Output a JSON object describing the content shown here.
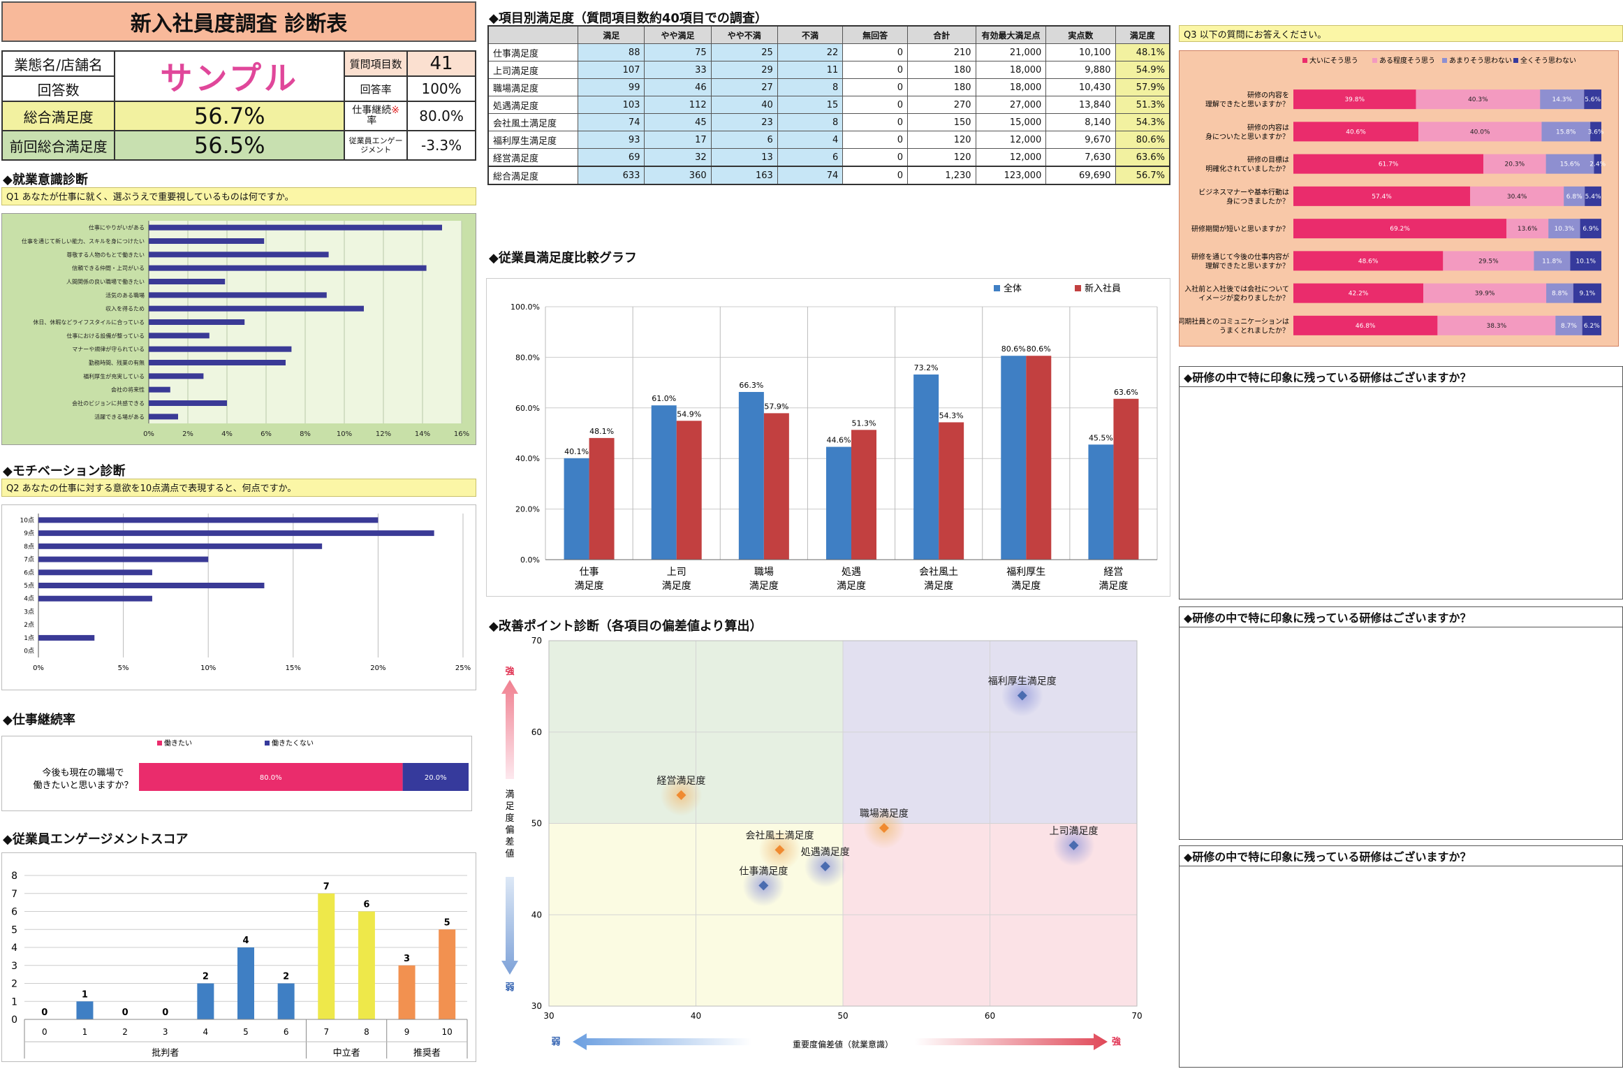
{
  "header": {
    "title": "新入社員度調査 診断表",
    "store_label": "業態名/店舗名",
    "store_value": "サンプル",
    "responses_label": "回答数",
    "overall_label": "総合満足度",
    "overall_value": "56.7%",
    "prev_label": "前回総合満足度",
    "prev_value": "56.5%",
    "items_label": "質問項目数",
    "items_value": "41",
    "rate_label": "回答率",
    "rate_value": "100%",
    "cont_label": "仕事継続率",
    "cont_mark": "※",
    "cont_value": "80.0%",
    "eng_label": "従業員エンゲージメント",
    "eng_value": "-3.3%"
  },
  "sections": {
    "work_awareness": "◆就業意識診断",
    "q1": "Q1 あなたが仕事に就く、選ぶうえで重要視しているものは何ですか。",
    "motivation": "◆モチベーション診断",
    "q2": "Q2 あなたの仕事に対する意欲を10点満点で表現すると、何点ですか。",
    "continuation": "◆仕事継続率",
    "engagement": "◆従業員エンゲージメントスコア",
    "item_satisfaction": "◆項目別満足度（質問項目数約40項目での調査）",
    "comparison": "◆従業員満足度比較グラフ",
    "improvement": "◆改善ポイント診断（各項目の偏差値より算出）",
    "q3": "Q3 以下の質問にお答えください。",
    "memo1": "◆研修の中で特に印象に残っている研修はございますか？",
    "memo2": "◆研修の中で特に印象に残っている研修はございますか？",
    "memo3": "◆研修の中で特に印象に残っている研修はございますか？"
  },
  "sat_table": {
    "headers": [
      "",
      "満足",
      "やや満足",
      "やや不満",
      "不満",
      "無回答",
      "合計",
      "有効最大満足点",
      "実点数",
      "満足度"
    ],
    "rows": [
      [
        "仕事満足度",
        "88",
        "75",
        "25",
        "22",
        "0",
        "210",
        "21,000",
        "10,100",
        "48.1%"
      ],
      [
        "上司満足度",
        "107",
        "33",
        "29",
        "11",
        "0",
        "180",
        "18,000",
        "9,880",
        "54.9%"
      ],
      [
        "職場満足度",
        "99",
        "46",
        "27",
        "8",
        "0",
        "180",
        "18,000",
        "10,430",
        "57.9%"
      ],
      [
        "処遇満足度",
        "103",
        "112",
        "40",
        "15",
        "0",
        "270",
        "27,000",
        "13,840",
        "51.3%"
      ],
      [
        "会社風土満足度",
        "74",
        "45",
        "23",
        "8",
        "0",
        "150",
        "15,000",
        "8,140",
        "54.3%"
      ],
      [
        "福利厚生満足度",
        "93",
        "17",
        "6",
        "4",
        "0",
        "120",
        "12,000",
        "9,670",
        "80.6%"
      ],
      [
        "経営満足度",
        "69",
        "32",
        "13",
        "6",
        "0",
        "120",
        "12,000",
        "7,630",
        "63.6%"
      ],
      [
        "総合満足度",
        "633",
        "360",
        "163",
        "74",
        "0",
        "1,230",
        "123,000",
        "69,690",
        "56.7%"
      ]
    ]
  },
  "colors": {
    "header_orange": "#f8b99a",
    "overall_yellow": "#f2f1a0",
    "prev_green": "#c8e0b0",
    "bar_navy": "#3a3a96",
    "pink": "#ea2c6c",
    "light_pink": "#f39ac0",
    "lavender": "#8e8fd0",
    "navy": "#363a9c",
    "blue": "#3f7fc4",
    "red": "#c24040",
    "yellow": "#eee84a",
    "orange": "#f29150"
  },
  "chart_data": [
    {
      "id": "q1",
      "type": "bar",
      "orientation": "horizontal",
      "categories": [
        "仕事にやりがいがある",
        "仕事を通じて新しい能力、スキルを身につけたい",
        "尊敬する人物のもとで働きたい",
        "信頼できる仲間・上司がいる",
        "人間関係の良い職場で働きたい",
        "活気のある職場",
        "収入を得るため",
        "休日、休暇などライフスタイルに合っている",
        "仕事における設備が整っている",
        "マナーや規律が守られている",
        "勤務時間、残業の有無",
        "福利厚生が充実している",
        "会社の将来性",
        "会社のビジョンに共感できる",
        "活躍できる場がある"
      ],
      "values": [
        15.0,
        5.9,
        9.2,
        14.2,
        3.9,
        9.1,
        11.0,
        4.9,
        3.1,
        7.3,
        7.0,
        2.8,
        1.1,
        4.0,
        1.5
      ],
      "xticks": [
        "0%",
        "2%",
        "4%",
        "6%",
        "8%",
        "10%",
        "12%",
        "14%",
        "16%"
      ],
      "xlim": [
        0,
        16
      ]
    },
    {
      "id": "q2",
      "type": "bar",
      "orientation": "horizontal",
      "categories": [
        "10点",
        "9点",
        "8点",
        "7点",
        "6点",
        "5点",
        "4点",
        "3点",
        "2点",
        "1点",
        "0点"
      ],
      "values": [
        20.0,
        23.3,
        16.7,
        10.0,
        6.7,
        13.3,
        6.7,
        0,
        0,
        3.3,
        0
      ],
      "xticks": [
        "0%",
        "5%",
        "10%",
        "15%",
        "20%",
        "25%"
      ],
      "xlim": [
        0,
        25
      ]
    },
    {
      "id": "continuation",
      "type": "bar",
      "stacked": true,
      "question": "今後も現在の職場で働きたいと思いますか？",
      "legend": [
        "働きたい",
        "働きたくない"
      ],
      "values": [
        80.0,
        20.0
      ],
      "labels": [
        "80.0%",
        "20.0%"
      ]
    },
    {
      "id": "engagement",
      "type": "bar",
      "categories": [
        "0",
        "1",
        "2",
        "3",
        "4",
        "5",
        "6",
        "7",
        "8",
        "9",
        "10"
      ],
      "values": [
        0,
        1,
        0,
        0,
        2,
        4,
        2,
        7,
        6,
        3,
        5
      ],
      "groups": [
        "批判者",
        "中立者",
        "推奨者"
      ],
      "ylim": [
        0,
        8
      ],
      "yticks": [
        "0",
        "1",
        "2",
        "3",
        "4",
        "5",
        "6",
        "7",
        "8"
      ]
    },
    {
      "id": "comparison",
      "type": "bar",
      "categories": [
        "仕事満足度",
        "上司満足度",
        "職場満足度",
        "処遇満足度",
        "会社風土満足度",
        "福利厚生満足度",
        "経営満足度"
      ],
      "series": [
        {
          "name": "全体",
          "values": [
            40.1,
            61.0,
            66.3,
            44.6,
            73.2,
            80.6,
            45.5
          ],
          "labels": [
            "40.1%",
            "61.0%",
            "66.3%",
            "44.6%",
            "73.2%",
            "80.6%",
            "45.5%"
          ]
        },
        {
          "name": "新入社員",
          "values": [
            48.1,
            54.9,
            57.9,
            51.3,
            54.3,
            80.6,
            63.6
          ],
          "labels": [
            "48.1%",
            "54.9%",
            "57.9%",
            "51.3%",
            "54.3%",
            "80.6%",
            "63.6%"
          ]
        }
      ],
      "ylim": [
        0,
        100
      ],
      "yticks": [
        "0.0%",
        "20.0%",
        "40.0%",
        "60.0%",
        "80.0%",
        "100.0%"
      ]
    },
    {
      "id": "improvement",
      "type": "scatter",
      "points": [
        {
          "label": "福利厚生満足度",
          "x": 62.2,
          "y": 64.0,
          "color": "blue"
        },
        {
          "label": "経営満足度",
          "x": 39.0,
          "y": 53.1,
          "color": "orange"
        },
        {
          "label": "職場満足度",
          "x": 52.8,
          "y": 49.5,
          "color": "orange"
        },
        {
          "label": "上司満足度",
          "x": 65.7,
          "y": 47.6,
          "color": "blue"
        },
        {
          "label": "会社風土満足度",
          "x": 45.7,
          "y": 47.1,
          "color": "orange"
        },
        {
          "label": "処遇満足度",
          "x": 48.8,
          "y": 45.3,
          "color": "blue"
        },
        {
          "label": "仕事満足度",
          "x": 44.6,
          "y": 43.2,
          "color": "blue"
        }
      ],
      "xlim": [
        30,
        70
      ],
      "ylim": [
        30,
        70
      ],
      "xticks": [
        "30",
        "40",
        "50",
        "60",
        "70"
      ],
      "yticks": [
        "30",
        "40",
        "50",
        "60",
        "70"
      ],
      "xlabel": "重要度偏差値（就業意識）",
      "ylabel": "満足度偏差値",
      "strong": "強",
      "weak": "弱"
    },
    {
      "id": "q3",
      "type": "bar",
      "stacked": true,
      "legend": [
        "大いにそう思う",
        "ある程度そう思う",
        "あまりそう思わない",
        "全くそう思わない"
      ],
      "questions": [
        "研修の内容を\n理解できたと思いますか？",
        "研修の内容は\n身についたと思いますか？",
        "研修の目標は\n明確化されていましたか？",
        "ビジネスマナーや基本行動は\n身につきましたか？",
        "研修期間が短いと思いますか？",
        "研修を通じて今後の仕事内容が\n理解できたと思いますか？",
        "入社前と入社後では会社について\nイメージが変わりましたか？",
        "同期社員とのコミュニケーションは\nうまくとれましたか？"
      ],
      "values": [
        [
          39.8,
          40.3,
          14.3,
          5.6
        ],
        [
          40.6,
          40.0,
          15.8,
          3.6
        ],
        [
          61.7,
          20.3,
          15.6,
          2.4
        ],
        [
          57.4,
          30.4,
          6.8,
          5.4
        ],
        [
          69.2,
          13.6,
          10.3,
          6.9
        ],
        [
          48.6,
          29.5,
          11.8,
          10.1
        ],
        [
          42.2,
          39.9,
          8.8,
          9.1
        ],
        [
          46.8,
          38.3,
          8.7,
          6.2
        ]
      ],
      "labels": [
        [
          "39.8%",
          "40.3%",
          "14.3%",
          "5.6%"
        ],
        [
          "40.6%",
          "40.0%",
          "15.8%",
          "3.6%"
        ],
        [
          "61.7%",
          "20.3%",
          "15.6%",
          "2.4%"
        ],
        [
          "57.4%",
          "30.4%",
          "6.8%",
          "5.4%"
        ],
        [
          "69.2%",
          "13.6%",
          "10.3%",
          "6.9%"
        ],
        [
          "48.6%",
          "29.5%",
          "11.8%",
          "10.1%"
        ],
        [
          "42.2%",
          "39.9%",
          "8.8%",
          "9.1%"
        ],
        [
          "46.8%",
          "38.3%",
          "8.7%",
          "6.2%"
        ]
      ]
    }
  ]
}
